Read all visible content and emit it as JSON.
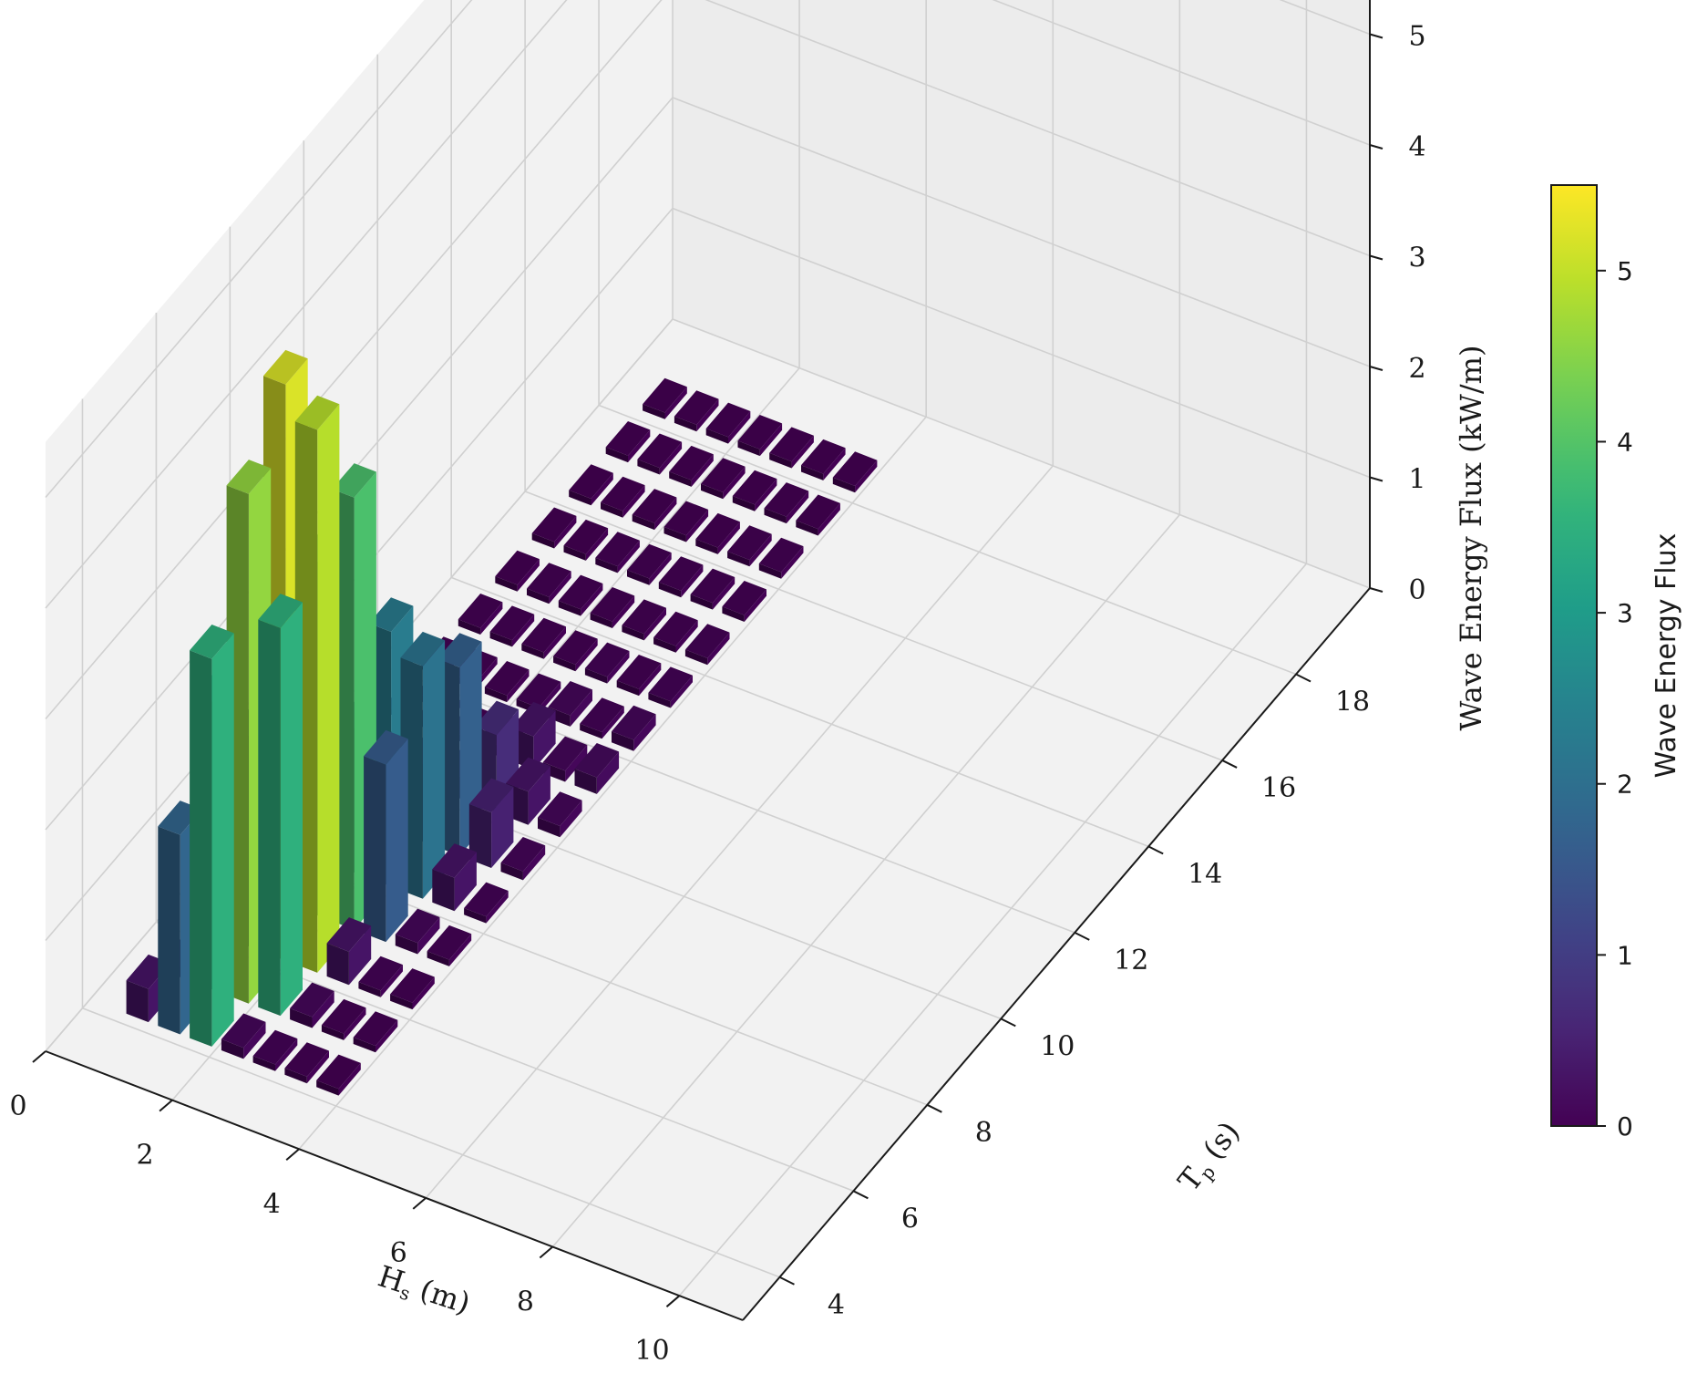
{
  "chart_data": {
    "type": "bar3d",
    "xlabel": "Hs (m)",
    "ylabel": "Tp (s)",
    "zlabel": "Wave Energy Flux (kW/m)",
    "colorbar_label": "Wave Energy Flux",
    "x_ticks": [
      "0",
      "2",
      "4",
      "6",
      "8",
      "10"
    ],
    "y_ticks": [
      "4",
      "6",
      "8",
      "10",
      "12",
      "14",
      "16",
      "18"
    ],
    "z_ticks": [
      "0",
      "1",
      "2",
      "3",
      "4",
      "5"
    ],
    "colorbar_ticks": [
      "0",
      "1",
      "2",
      "3",
      "4",
      "5"
    ],
    "xlim": [
      0,
      11
    ],
    "ylim": [
      3,
      20
    ],
    "zlim": [
      0,
      5.5
    ],
    "colormap": "viridis",
    "colormap_stops": [
      "#440154",
      "#482878",
      "#3e4989",
      "#31688e",
      "#26828e",
      "#1f9e89",
      "#35b779",
      "#6ece58",
      "#b5de2b",
      "#fde725"
    ],
    "grid": true,
    "colorbar_placement": "right",
    "Hs_bins": [
      0.75,
      1.25,
      1.75,
      2.25,
      2.75,
      3.25,
      3.75
    ],
    "Tp_bins": [
      4.5,
      5.5,
      6.5,
      7.5,
      8.5,
      9.5,
      10.5,
      11.5,
      12.5,
      13.5,
      14.5,
      15.5,
      16.5,
      17.5,
      18.5
    ],
    "flux": [
      [
        0.3,
        0.1,
        0.05,
        0.02,
        0.02,
        0.01,
        0.01,
        0.01,
        0.01,
        0.01,
        0.0,
        0.0,
        0.0,
        0.0,
        0.0
      ],
      [
        1.8,
        2.6,
        1.9,
        0.5,
        0.1,
        0.05,
        0.02,
        0.02,
        0.01,
        0.01,
        0.01,
        0.0,
        0.0,
        0.0,
        0.0
      ],
      [
        3.5,
        4.6,
        5.2,
        3.2,
        1.3,
        0.3,
        0.05,
        0.02,
        0.02,
        0.01,
        0.01,
        0.01,
        0.0,
        0.0,
        0.0
      ],
      [
        0.1,
        3.5,
        4.9,
        3.9,
        2.3,
        0.7,
        0.2,
        0.1,
        0.05,
        0.02,
        0.01,
        0.01,
        0.0,
        0.0,
        0.0
      ],
      [
        0.05,
        0.1,
        0.3,
        1.6,
        2.1,
        1.7,
        0.7,
        0.3,
        0.1,
        0.05,
        0.02,
        0.01,
        0.0,
        0.0,
        0.0
      ],
      [
        0.01,
        0.02,
        0.05,
        0.1,
        0.3,
        0.5,
        0.3,
        0.1,
        0.05,
        0.02,
        0.02,
        0.01,
        0.01,
        0.0,
        0.0
      ],
      [
        0.0,
        0.01,
        0.02,
        0.03,
        0.05,
        0.08,
        0.1,
        0.15,
        0.1,
        0.05,
        0.03,
        0.02,
        0.01,
        0.0,
        0.0
      ]
    ]
  }
}
